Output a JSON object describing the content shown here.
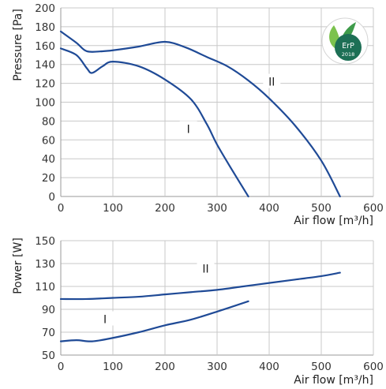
{
  "colors": {
    "curve": "#1f4a96",
    "badge": "#1e7a5a",
    "badge_leaf": "#6cc04a"
  },
  "badge": {
    "icon": "erp-leaf-icon",
    "text": "ErP",
    "year": "2018"
  },
  "chart_data": [
    {
      "type": "line",
      "title": "",
      "xlabel": "Air flow [m³/h]",
      "ylabel": "Pressure [Pa]",
      "xlim": [
        0,
        600
      ],
      "ylim": [
        0,
        200
      ],
      "x_ticks": [
        0,
        100,
        200,
        300,
        400,
        500,
        600
      ],
      "y_ticks": [
        0,
        20,
        40,
        60,
        80,
        100,
        120,
        140,
        160,
        180,
        200
      ],
      "grid": true,
      "series": [
        {
          "name": "I",
          "x": [
            0,
            30,
            50,
            60,
            80,
            100,
            150,
            200,
            250,
            280,
            300,
            330,
            360
          ],
          "y": [
            157,
            150,
            136,
            131,
            138,
            143,
            138,
            124,
            103,
            77,
            55,
            27,
            0
          ]
        },
        {
          "name": "II",
          "x": [
            0,
            30,
            50,
            80,
            100,
            150,
            200,
            240,
            280,
            320,
            360,
            400,
            450,
            500,
            536
          ],
          "y": [
            175,
            163,
            154,
            154,
            155,
            159,
            164,
            158,
            148,
            138,
            123,
            104,
            75,
            38,
            0
          ]
        }
      ],
      "annotations": [
        {
          "text": "I",
          "x": 245,
          "y": 70
        },
        {
          "text": "II",
          "x": 405,
          "y": 120
        }
      ]
    },
    {
      "type": "line",
      "title": "",
      "xlabel": "Air flow [m³/h]",
      "ylabel": "Power [W]",
      "xlim": [
        0,
        600
      ],
      "ylim": [
        50,
        150
      ],
      "x_ticks": [
        0,
        100,
        200,
        300,
        400,
        500,
        600
      ],
      "y_ticks": [
        50,
        70,
        90,
        110,
        130,
        150
      ],
      "grid": true,
      "series": [
        {
          "name": "I",
          "x": [
            0,
            30,
            60,
            100,
            150,
            200,
            250,
            300,
            360
          ],
          "y": [
            62,
            63,
            62,
            65,
            70,
            76,
            81,
            88,
            97
          ]
        },
        {
          "name": "II",
          "x": [
            0,
            50,
            100,
            150,
            200,
            250,
            300,
            350,
            400,
            450,
            500,
            536
          ],
          "y": [
            99,
            99,
            100,
            101,
            103,
            105,
            107,
            110,
            113,
            116,
            119,
            122
          ]
        }
      ],
      "annotations": [
        {
          "text": "II",
          "x": 278,
          "y": 124
        },
        {
          "text": "I",
          "x": 85,
          "y": 80
        }
      ]
    }
  ]
}
